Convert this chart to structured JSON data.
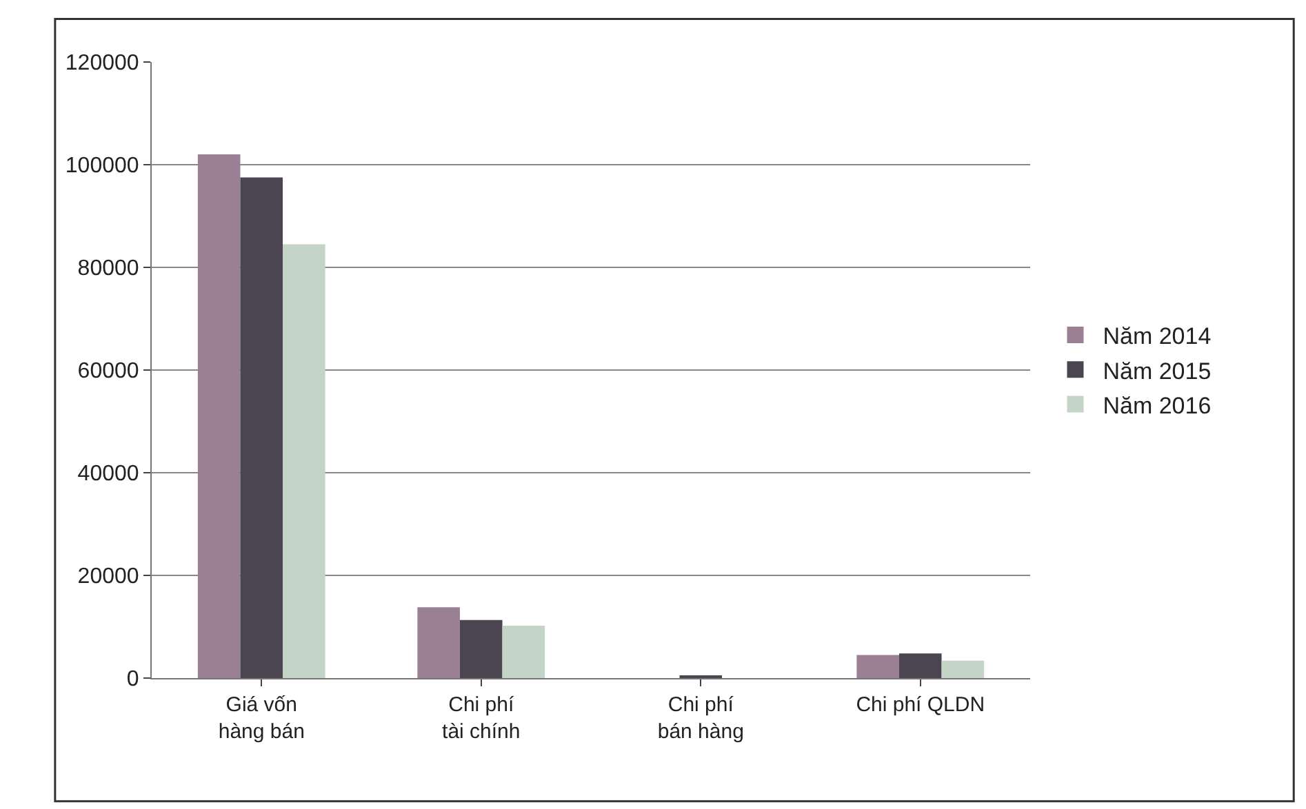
{
  "chart_data": {
    "type": "bar",
    "categories": [
      "Giá vốn hàng bán",
      "Chi phí tài chính",
      "Chi phí bán hàng",
      "Chi phí QLDN"
    ],
    "series": [
      {
        "name": "Năm 2014",
        "color": "#9a7f95",
        "values": [
          102000,
          13800,
          0,
          4500
        ]
      },
      {
        "name": "Năm 2015",
        "color": "#4a4550",
        "values": [
          97500,
          11300,
          300,
          4800
        ]
      },
      {
        "name": "Năm 2016",
        "color": "#c4d4c6",
        "values": [
          84500,
          10200,
          0,
          3400
        ]
      }
    ],
    "ylim": [
      0,
      120000
    ],
    "yticks": [
      0,
      20000,
      40000,
      60000,
      80000,
      100000,
      120000
    ],
    "grid": "y",
    "legend": "right"
  }
}
